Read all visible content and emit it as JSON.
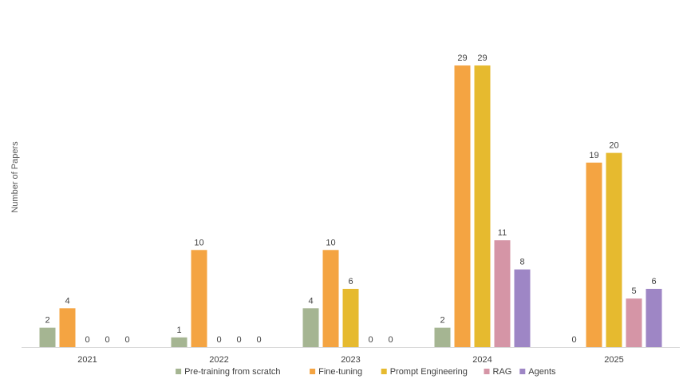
{
  "chart_data": {
    "type": "bar",
    "title": "",
    "xlabel": "",
    "ylabel": "Number of Papers",
    "categories": [
      "2021",
      "2022",
      "2023",
      "2024",
      "2025"
    ],
    "series": [
      {
        "name": "Pre-training from scratch",
        "color": "#a5b592",
        "values": [
          2,
          1,
          4,
          2,
          0
        ]
      },
      {
        "name": "Fine-tuning",
        "color": "#f4a442",
        "values": [
          4,
          10,
          10,
          29,
          19
        ]
      },
      {
        "name": "Prompt Engineering",
        "color": "#e6ba2f",
        "values": [
          0,
          0,
          6,
          29,
          20
        ]
      },
      {
        "name": "RAG",
        "color": "#d595a6",
        "values": [
          0,
          0,
          0,
          11,
          5
        ]
      },
      {
        "name": "Agents",
        "color": "#9e86c5",
        "values": [
          0,
          0,
          0,
          8,
          6
        ]
      }
    ],
    "ylim": [
      0,
      30
    ],
    "grid": false,
    "legend_position": "bottom"
  }
}
